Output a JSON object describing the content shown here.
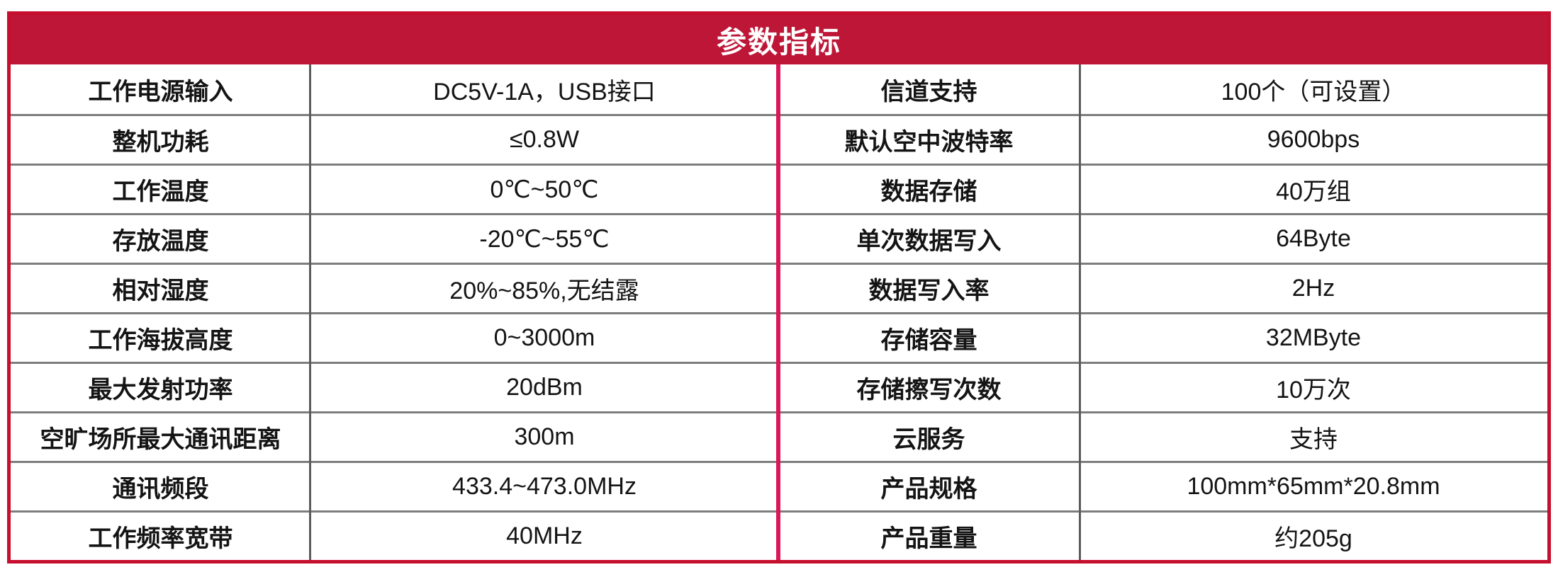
{
  "header": {
    "title": "参数指标"
  },
  "colors": {
    "header_bg": "#bd1637",
    "outer_border": "#c60f2e",
    "center_divider": "#d9175b",
    "hline": "#7d7d7d",
    "vline": "#5c5c5c",
    "text": "#141414",
    "title_text": "#ffffff",
    "page_bg": "#ffffff"
  },
  "table": {
    "rows": [
      {
        "left_label": "工作电源输入",
        "left_value": "DC5V-1A，USB接口",
        "right_label": "信道支持",
        "right_value": "100个（可设置）"
      },
      {
        "left_label": "整机功耗",
        "left_value": "≤0.8W",
        "right_label": "默认空中波特率",
        "right_value": "9600bps"
      },
      {
        "left_label": "工作温度",
        "left_value": "0℃~50℃",
        "right_label": "数据存储",
        "right_value": "40万组"
      },
      {
        "left_label": "存放温度",
        "left_value": "-20℃~55℃",
        "right_label": "单次数据写入",
        "right_value": "64Byte"
      },
      {
        "left_label": "相对湿度",
        "left_value": "20%~85%,无结露",
        "right_label": "数据写入率",
        "right_value": "2Hz"
      },
      {
        "left_label": "工作海拔高度",
        "left_value": "0~3000m",
        "right_label": "存储容量",
        "right_value": "32MByte"
      },
      {
        "left_label": "最大发射功率",
        "left_value": "20dBm",
        "right_label": "存储擦写次数",
        "right_value": "10万次"
      },
      {
        "left_label": "空旷场所最大通讯距离",
        "left_value": "300m",
        "right_label": "云服务",
        "right_value": "支持"
      },
      {
        "left_label": "通讯频段",
        "left_value": "433.4~473.0MHz",
        "right_label": "产品规格",
        "right_value": "100mm*65mm*20.8mm"
      },
      {
        "left_label": "工作频率宽带",
        "left_value": "40MHz",
        "right_label": "产品重量",
        "right_value": "约205g"
      }
    ]
  }
}
